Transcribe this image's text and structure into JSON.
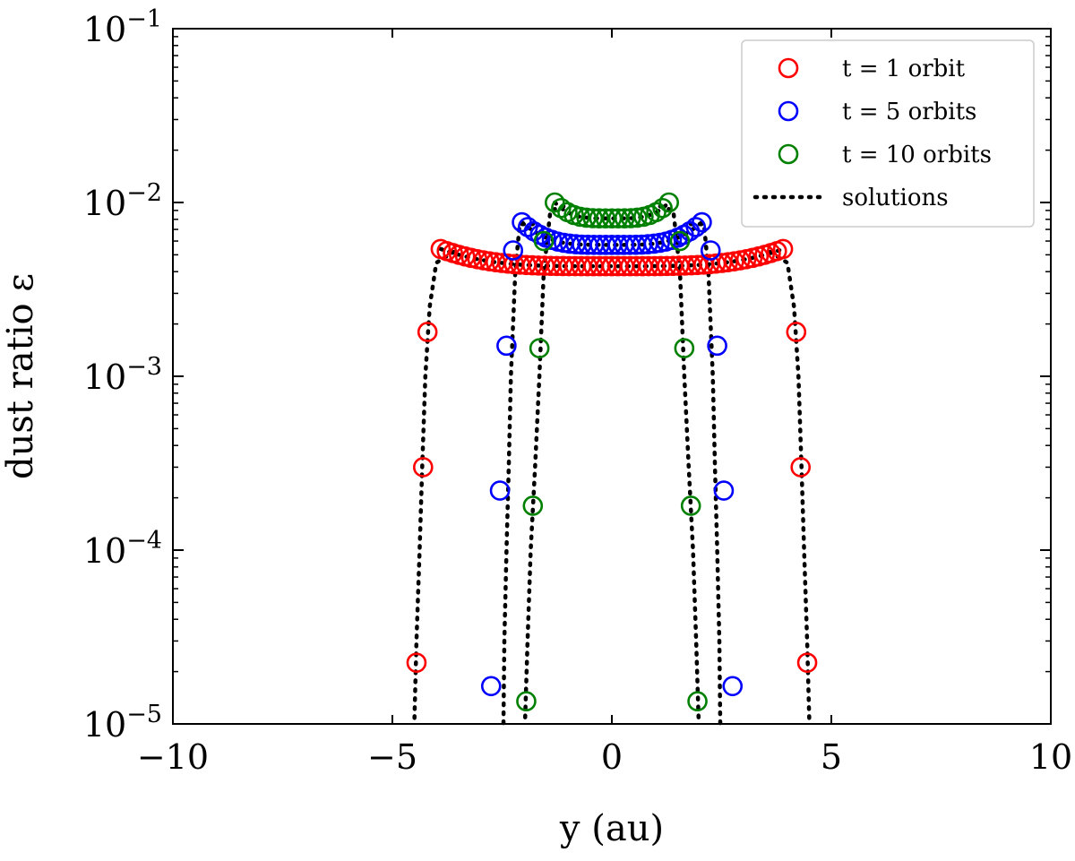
{
  "chart_data": {
    "type": "scatter",
    "title": "",
    "xlabel": "y (au)",
    "ylabel": "dust ratio ε",
    "xlim": [
      -10,
      10
    ],
    "ylim": [
      1e-05,
      0.1
    ],
    "yscale": "log",
    "xticks": [
      {
        "value": -10,
        "label": "−10"
      },
      {
        "value": -5,
        "label": "−5"
      },
      {
        "value": 0,
        "label": "0"
      },
      {
        "value": 5,
        "label": "5"
      },
      {
        "value": 10,
        "label": "10"
      }
    ],
    "yticks": [
      {
        "value": 1e-05,
        "base": "10",
        "exp": "−5"
      },
      {
        "value": 0.0001,
        "base": "10",
        "exp": "−4"
      },
      {
        "value": 0.001,
        "base": "10",
        "exp": "−3"
      },
      {
        "value": 0.01,
        "base": "10",
        "exp": "−2"
      },
      {
        "value": 0.1,
        "base": "10",
        "exp": "−1"
      }
    ],
    "legend_position": "top-right",
    "series": [
      {
        "name": "t = 1 orbit",
        "color": "#ff0000",
        "marker": "open-circle",
        "edge": 3.9,
        "plateau_min": 0.0043,
        "plateau_edge": 0.0054,
        "tails": [
          [
            4.2,
            0.0018
          ],
          [
            4.3,
            0.0003
          ],
          [
            4.45,
            2.25e-05
          ]
        ],
        "solution": [
          [
            3.6,
            0.0052
          ],
          [
            4.0,
            0.0045
          ],
          [
            4.15,
            0.0025
          ],
          [
            4.25,
            0.001
          ],
          [
            4.32,
            0.0003
          ],
          [
            4.38,
            0.0001
          ],
          [
            4.45,
            3e-05
          ],
          [
            4.5,
            1e-05
          ]
        ]
      },
      {
        "name": "t = 5 orbits",
        "color": "#0000ff",
        "marker": "open-circle",
        "edge": 2.05,
        "plateau_min": 0.0057,
        "plateau_edge": 0.0077,
        "tails": [
          [
            2.25,
            0.0053
          ],
          [
            2.4,
            0.0015
          ],
          [
            2.55,
            0.00022
          ],
          [
            2.75,
            1.65e-05
          ]
        ],
        "solution": [
          [
            1.8,
            0.0075
          ],
          [
            2.1,
            0.0075
          ],
          [
            2.2,
            0.004
          ],
          [
            2.3,
            0.001
          ],
          [
            2.35,
            0.0003
          ],
          [
            2.4,
            0.0001
          ],
          [
            2.45,
            3e-05
          ],
          [
            2.47,
            1e-05
          ]
        ]
      },
      {
        "name": "t = 10 orbits",
        "color": "#008000",
        "marker": "open-circle",
        "edge": 1.3,
        "plateau_min": 0.0081,
        "plateau_edge": 0.01,
        "tails": [
          [
            1.55,
            0.006
          ],
          [
            1.65,
            0.00145
          ],
          [
            1.8,
            0.00018
          ],
          [
            1.95,
            1.35e-05
          ]
        ],
        "solution": [
          [
            1.1,
            0.0095
          ],
          [
            1.4,
            0.009
          ],
          [
            1.55,
            0.004
          ],
          [
            1.65,
            0.001
          ],
          [
            1.75,
            0.0003
          ],
          [
            1.85,
            0.0001
          ],
          [
            1.92,
            3e-05
          ],
          [
            1.98,
            1e-05
          ]
        ]
      },
      {
        "name": "solutions",
        "color": "#000000",
        "marker": "dotted-line"
      }
    ]
  }
}
